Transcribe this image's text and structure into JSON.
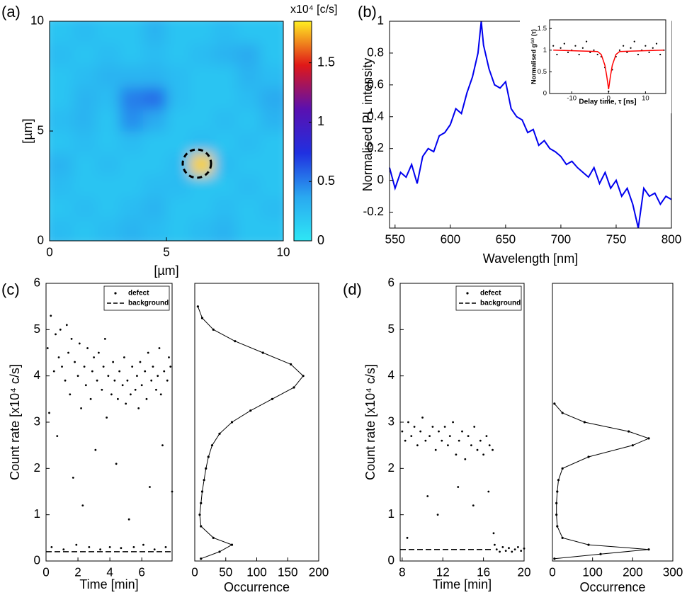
{
  "chart_data": [
    {
      "type": "heatmap",
      "panel_label": "(a)",
      "xlabel": "[µm]",
      "ylabel": "[µm]",
      "xlim": [
        0,
        10
      ],
      "ylim": [
        0,
        10
      ],
      "xticks": [
        0,
        5,
        10
      ],
      "yticks": [
        0,
        5,
        10
      ],
      "colorbar_label": "x10⁴ [c/s]",
      "zlim": [
        0,
        1.85
      ],
      "zticks": [
        0,
        0.5,
        1,
        1.5
      ],
      "colorscale": [
        "#2ee6f5",
        "#2aa8f0",
        "#2030e0",
        "#5a10b0",
        "#e01818",
        "#ffee22"
      ],
      "z": [
        [
          0.25,
          0.2,
          0.25,
          0.3,
          0.25,
          0.2,
          0.25,
          0.3,
          0.2,
          0.2
        ],
        [
          0.2,
          0.25,
          0.2,
          0.25,
          0.3,
          0.2,
          0.2,
          0.25,
          0.2,
          0.25
        ],
        [
          0.25,
          0.2,
          0.2,
          0.2,
          0.25,
          0.25,
          0.2,
          0.2,
          0.25,
          0.2
        ],
        [
          0.3,
          0.2,
          0.25,
          0.2,
          0.2,
          0.25,
          1.8,
          0.25,
          0.2,
          0.2
        ],
        [
          0.2,
          0.25,
          0.2,
          0.25,
          0.2,
          0.2,
          0.25,
          0.2,
          0.25,
          0.2
        ],
        [
          0.25,
          0.3,
          0.2,
          0.45,
          0.35,
          0.2,
          0.2,
          0.25,
          0.2,
          0.3
        ],
        [
          0.2,
          0.3,
          0.25,
          0.5,
          0.55,
          0.25,
          0.2,
          0.2,
          0.25,
          0.35
        ],
        [
          0.2,
          0.25,
          0.3,
          0.3,
          0.3,
          0.25,
          0.2,
          0.2,
          0.3,
          0.25
        ],
        [
          0.25,
          0.2,
          0.25,
          0.2,
          0.25,
          0.2,
          0.25,
          0.3,
          0.35,
          0.2
        ],
        [
          0.2,
          0.25,
          0.2,
          0.2,
          0.3,
          0.2,
          0.2,
          0.25,
          0.2,
          0.2
        ]
      ]
    },
    {
      "type": "line",
      "panel_label": "(b)",
      "xlabel": "Wavelength [nm]",
      "ylabel": "Normalised PL intensity",
      "color": "#0000ee",
      "xlim": [
        545,
        800
      ],
      "ylim": [
        -0.3,
        1
      ],
      "xticks": [
        550,
        600,
        650,
        700,
        750,
        800
      ],
      "yticks": [
        -0.2,
        0,
        0.2,
        0.4,
        0.6,
        0.8,
        1
      ],
      "x": [
        545,
        550,
        555,
        560,
        565,
        570,
        575,
        580,
        585,
        590,
        595,
        600,
        605,
        610,
        615,
        620,
        625,
        628,
        630,
        635,
        640,
        645,
        650,
        655,
        660,
        665,
        670,
        675,
        680,
        685,
        690,
        695,
        700,
        705,
        710,
        715,
        720,
        725,
        730,
        735,
        740,
        745,
        750,
        755,
        760,
        765,
        770,
        775,
        780,
        785,
        790,
        795,
        800
      ],
      "values": [
        0.08,
        -0.05,
        0.05,
        0.02,
        0.1,
        -0.02,
        0.15,
        0.2,
        0.18,
        0.28,
        0.3,
        0.35,
        0.45,
        0.42,
        0.55,
        0.65,
        0.8,
        1.0,
        0.85,
        0.7,
        0.6,
        0.58,
        0.62,
        0.45,
        0.4,
        0.38,
        0.3,
        0.32,
        0.22,
        0.25,
        0.2,
        0.18,
        0.15,
        0.1,
        0.12,
        0.08,
        0.05,
        0.02,
        0.08,
        -0.02,
        0.05,
        -0.05,
        0.0,
        -0.1,
        -0.05,
        -0.15,
        -0.3,
        -0.05,
        -0.1,
        -0.08,
        -0.15,
        -0.1,
        -0.12
      ]
    },
    {
      "type": "scatter",
      "xlabel": "Delay time, τ [ns]",
      "ylabel": "Normalised g⁽²⁾ (τ)",
      "xlim": [
        -16,
        15.5
      ],
      "ylim": [
        0,
        1.7
      ],
      "xticks": [
        -10,
        0,
        10
      ],
      "yticks": [
        0,
        0.5,
        1,
        1.5
      ],
      "series": [
        {
          "color": "#000000",
          "style": "dots",
          "x": [
            -15,
            -14,
            -13,
            -12,
            -11,
            -10,
            -9,
            -8,
            -7,
            -6,
            -5,
            -4,
            -3,
            -2,
            -1,
            0,
            1,
            2,
            3,
            4,
            5,
            6,
            7,
            8,
            9,
            10,
            11,
            12,
            13,
            14,
            15
          ],
          "values": [
            1.1,
            0.9,
            1.05,
            1.15,
            0.95,
            1.0,
            1.1,
            0.9,
            1.05,
            1.2,
            0.95,
            1.0,
            0.9,
            0.85,
            0.6,
            0.05,
            0.55,
            0.85,
            1.0,
            1.1,
            0.95,
            1.05,
            1.2,
            0.9,
            1.0,
            1.1,
            0.95,
            1.05,
            1.15,
            0.9,
            1.0
          ]
        },
        {
          "color": "#ff0000",
          "style": "line",
          "x": [
            -15,
            -3,
            -2,
            -1,
            -0.5,
            0,
            0.5,
            1,
            2,
            3,
            15
          ],
          "values": [
            1,
            0.97,
            0.9,
            0.65,
            0.4,
            0.1,
            0.4,
            0.65,
            0.9,
            0.97,
            1
          ]
        }
      ]
    },
    {
      "type": "scatter",
      "panel_label": "(c)",
      "xlabel": "Time [min]",
      "ylabel": "Count rate [x10⁴ c/s]",
      "legend": "upper right",
      "xlim": [
        0,
        7.9
      ],
      "ylim": [
        0,
        6
      ],
      "xticks": [
        0,
        2,
        4,
        6
      ],
      "yticks": [
        0,
        1,
        2,
        3,
        4,
        5,
        6
      ],
      "series": [
        {
          "name": "defect",
          "color": "#000000",
          "style": "dots",
          "x": [
            0.1,
            0.2,
            0.3,
            0.35,
            0.5,
            0.6,
            0.7,
            0.8,
            0.9,
            1.0,
            1.1,
            1.2,
            1.3,
            1.4,
            1.5,
            1.6,
            1.7,
            1.8,
            1.9,
            2.0,
            2.1,
            2.2,
            2.3,
            2.4,
            2.5,
            2.6,
            2.7,
            2.8,
            2.9,
            3.0,
            3.1,
            3.2,
            3.3,
            3.4,
            3.5,
            3.6,
            3.7,
            3.8,
            3.9,
            4.0,
            4.1,
            4.2,
            4.3,
            4.4,
            4.5,
            4.6,
            4.7,
            4.8,
            4.9,
            5.0,
            5.1,
            5.2,
            5.3,
            5.4,
            5.5,
            5.6,
            5.7,
            5.8,
            5.9,
            6.0,
            6.1,
            6.2,
            6.3,
            6.4,
            6.5,
            6.6,
            6.7,
            6.8,
            6.9,
            7.0,
            7.1,
            7.2,
            7.3,
            7.4,
            7.5,
            7.6,
            7.7,
            7.8,
            7.9
          ],
          "values": [
            4.6,
            3.2,
            5.3,
            0.3,
            4.1,
            4.9,
            2.7,
            4.4,
            5.0,
            4.2,
            0.25,
            3.9,
            5.1,
            4.5,
            3.6,
            4.8,
            1.8,
            4.3,
            0.35,
            4.0,
            4.7,
            3.3,
            1.2,
            4.2,
            3.8,
            4.6,
            0.3,
            3.5,
            4.1,
            4.4,
            2.4,
            3.9,
            4.5,
            0.25,
            3.7,
            4.2,
            4.8,
            3.1,
            4.0,
            0.3,
            3.6,
            4.3,
            3.9,
            2.1,
            3.5,
            4.1,
            0.28,
            3.8,
            4.4,
            3.4,
            3.9,
            0.9,
            3.6,
            4.2,
            0.3,
            3.7,
            4.0,
            3.3,
            4.3,
            3.8,
            0.35,
            4.1,
            3.5,
            4.5,
            1.6,
            3.9,
            4.2,
            0.25,
            3.7,
            4.0,
            4.6,
            3.6,
            2.5,
            4.1,
            0.3,
            3.9,
            4.4,
            4.2,
            1.5
          ]
        },
        {
          "name": "background",
          "color": "#000000",
          "style": "dashed",
          "x": [
            0,
            7.9
          ],
          "values": [
            0.2,
            0.2
          ]
        }
      ]
    },
    {
      "type": "line",
      "orientation": "horizontal",
      "xlabel": "Occurrence",
      "color": "#000000",
      "xlim": [
        0,
        200
      ],
      "ylim": [
        0,
        6
      ],
      "xticks": [
        0,
        50,
        100,
        150,
        200
      ],
      "y": [
        0.05,
        0.2,
        0.35,
        0.5,
        0.75,
        1.0,
        1.25,
        1.5,
        1.75,
        2.0,
        2.25,
        2.5,
        2.75,
        3.0,
        3.25,
        3.5,
        3.75,
        4.0,
        4.25,
        4.5,
        4.75,
        5.0,
        5.25,
        5.5
      ],
      "values": [
        10,
        40,
        60,
        30,
        10,
        8,
        10,
        12,
        15,
        18,
        22,
        28,
        40,
        60,
        90,
        125,
        160,
        175,
        155,
        110,
        65,
        30,
        12,
        5
      ]
    },
    {
      "type": "scatter",
      "panel_label": "(d)",
      "xlabel": "Time [min]",
      "ylabel": "Count rate [x10⁴ c/s]",
      "legend": "upper right",
      "xlim": [
        7.8,
        20
      ],
      "ylim": [
        0,
        6
      ],
      "xticks": [
        8,
        12,
        16,
        20
      ],
      "yticks": [
        0,
        1,
        2,
        3,
        4,
        5,
        6
      ],
      "series": [
        {
          "name": "defect",
          "color": "#000000",
          "style": "dots",
          "x": [
            8.0,
            8.3,
            8.5,
            8.6,
            8.9,
            9.2,
            9.5,
            9.8,
            10.0,
            10.3,
            10.5,
            10.7,
            11.0,
            11.3,
            11.5,
            11.6,
            11.9,
            12.2,
            12.5,
            12.7,
            13.0,
            13.3,
            13.5,
            13.6,
            13.9,
            14.2,
            14.5,
            14.8,
            15.0,
            15.1,
            15.4,
            15.7,
            16.0,
            16.3,
            16.5,
            16.6,
            16.9,
            17.0,
            17.1,
            17.3,
            17.6,
            17.9,
            18.2,
            18.5,
            18.8,
            19.1,
            19.4,
            19.7,
            20.0
          ],
          "values": [
            2.8,
            2.6,
            0.5,
            3.0,
            2.7,
            2.9,
            2.5,
            2.8,
            3.1,
            2.6,
            1.4,
            2.7,
            2.9,
            2.4,
            1.0,
            2.8,
            2.6,
            2.9,
            2.5,
            2.7,
            3.0,
            2.3,
            1.6,
            2.6,
            2.8,
            2.2,
            2.7,
            2.5,
            1.2,
            2.9,
            2.4,
            2.6,
            2.3,
            2.7,
            1.5,
            2.5,
            2.4,
            0.6,
            0.35,
            0.25,
            0.2,
            0.3,
            0.22,
            0.28,
            0.2,
            0.25,
            0.3,
            0.22,
            0.27
          ]
        },
        {
          "name": "background",
          "color": "#000000",
          "style": "dashed",
          "x": [
            7.8,
            17
          ],
          "values": [
            0.25,
            0.25
          ]
        }
      ]
    },
    {
      "type": "line",
      "orientation": "horizontal",
      "xlabel": "Occurrence",
      "color": "#000000",
      "xlim": [
        0,
        300
      ],
      "ylim": [
        0,
        6
      ],
      "xticks": [
        0,
        100,
        200,
        300
      ],
      "y": [
        0.05,
        0.15,
        0.25,
        0.35,
        0.5,
        0.75,
        1.0,
        1.25,
        1.5,
        1.75,
        2.0,
        2.25,
        2.5,
        2.65,
        2.8,
        3.0,
        3.2,
        3.4
      ],
      "values": [
        5,
        120,
        240,
        90,
        25,
        12,
        10,
        10,
        12,
        15,
        25,
        90,
        200,
        240,
        190,
        80,
        25,
        5
      ]
    }
  ]
}
